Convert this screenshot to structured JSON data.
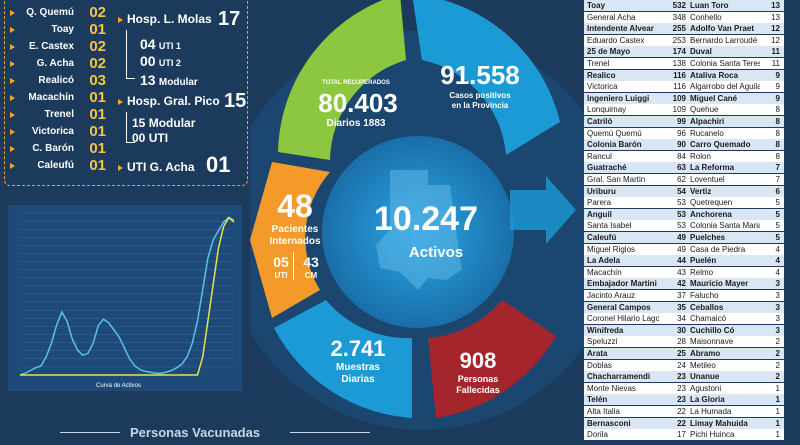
{
  "locations": [
    {
      "name": "Q. Quemú",
      "value": "02"
    },
    {
      "name": "Toay",
      "value": "01"
    },
    {
      "name": "E. Castex",
      "value": "02"
    },
    {
      "name": "G. Acha",
      "value": "02"
    },
    {
      "name": "Realicó",
      "value": "03"
    },
    {
      "name": "Macachín",
      "value": "01"
    },
    {
      "name": "Trenel",
      "value": "01"
    },
    {
      "name": "Victorica",
      "value": "01"
    },
    {
      "name": "C. Barón",
      "value": "01"
    },
    {
      "name": "Caleufú",
      "value": "01"
    }
  ],
  "hospitals": {
    "molas": {
      "label": "Hosp. L. Molas",
      "total": "17",
      "uti1": "04",
      "uti1_label": "UTI 1",
      "uti2": "00",
      "uti2_label": "UTI 2",
      "modular": "13",
      "modular_label": "Modular"
    },
    "pico": {
      "label": "Hosp. Gral. Pico",
      "total": "15",
      "modular": "15",
      "modular_label": "Modular",
      "uti": "00",
      "uti_label": "UTI"
    },
    "acha": {
      "label": "UTI G. Acha",
      "total": "01"
    }
  },
  "stats": {
    "recuperados": {
      "label": "TOTAL RECUPERADOS",
      "value": "80.403",
      "daily": "Diarios 1883"
    },
    "positivos": {
      "value": "91.558",
      "label1": "Casos positivos",
      "label2": "en la Provincia"
    },
    "internados": {
      "value": "48",
      "label1": "Pacientes",
      "label2": "Internados",
      "uti": "05",
      "uti_label": "UTI",
      "cm": "43",
      "cm_label": "CM"
    },
    "activos": {
      "value": "10.247",
      "label": "Activos"
    },
    "muestras": {
      "value": "2.741",
      "label1": "Muestras",
      "label2": "Diarias"
    },
    "fallecidas": {
      "value": "908",
      "label1": "Personas",
      "label2": "Fallecidas"
    }
  },
  "colors": {
    "green": "#8dc63f",
    "blue": "#1c9ad6",
    "orange": "#f39a2b",
    "red": "#a4262c",
    "center": "#1f8fd0",
    "panel_border": "#e8a23a"
  },
  "chart_data": {
    "type": "line",
    "xlabel": "Curva de Activos",
    "series": [
      {
        "name": "",
        "values": [
          0,
          2,
          5,
          8,
          10,
          20,
          35,
          55,
          70,
          60,
          40,
          28,
          22,
          24,
          35,
          55,
          62,
          58,
          50,
          42,
          30,
          18,
          10,
          6,
          4,
          3,
          2,
          2,
          3,
          5,
          8,
          12,
          20,
          35,
          60,
          95,
          130,
          150,
          160,
          170,
          175,
          172
        ]
      },
      {
        "name": "",
        "values": [
          0,
          0,
          0,
          0,
          0,
          0,
          0,
          0,
          0,
          0,
          0,
          0,
          0,
          0,
          0,
          0,
          0,
          0,
          0,
          0,
          0,
          0,
          0,
          0,
          0,
          0,
          0,
          0,
          0,
          0,
          0,
          0,
          0,
          0,
          0,
          20,
          60,
          100,
          140,
          165,
          175,
          170
        ]
      }
    ]
  },
  "table_rows": [
    [
      "Toay",
      "532",
      "Luan Toro",
      "13"
    ],
    [
      "General Acha",
      "348",
      "Conhello",
      "13"
    ],
    [
      "Intendente Alvear",
      "255",
      "Adolfo Van Praet",
      "12"
    ],
    [
      "Eduardo Castex",
      "253",
      "Bernardo Larroudé",
      "12"
    ],
    [
      "25 de Mayo",
      "174",
      "Duval",
      "11"
    ],
    [
      "Trenel",
      "138",
      "Colonia Santa Teresa",
      "11"
    ],
    [
      "Realico",
      "116",
      "Ataliva Roca",
      "9"
    ],
    [
      "Victorica",
      "116",
      "Algarrobo del Aguila",
      "9"
    ],
    [
      "Ingeniero Luiggi",
      "109",
      "Miguel Cané",
      "9"
    ],
    [
      "Lonquimay",
      "109",
      "Quehue",
      "8"
    ],
    [
      "Catriló",
      "99",
      "Alpachiri",
      "8"
    ],
    [
      "Quemú Quemú",
      "96",
      "Rucanelo",
      "8"
    ],
    [
      "Colonia Barón",
      "90",
      "Carro Quemado",
      "8"
    ],
    [
      "Rancul",
      "84",
      "Rolon",
      "8"
    ],
    [
      "Guatraché",
      "63",
      "La Reforma",
      "7"
    ],
    [
      "Gral. San Martin",
      "62",
      "Loventuel",
      "7"
    ],
    [
      "Uriburu",
      "54",
      "Vertiz",
      "6"
    ],
    [
      "Parera",
      "53",
      "Quetrequen",
      "5"
    ],
    [
      "Anguil",
      "53",
      "Anchorena",
      "5"
    ],
    [
      "Santa Isabel",
      "53",
      "Colonia Santa Maria",
      "5"
    ],
    [
      "Caleufú",
      "49",
      "Puelches",
      "5"
    ],
    [
      "Miguel Riglos",
      "49",
      "Casa de Piedra",
      "4"
    ],
    [
      "La Adela",
      "44",
      "Puelén",
      "4"
    ],
    [
      "Macachín",
      "43",
      "Relmo",
      "4"
    ],
    [
      "Embajador Martini",
      "42",
      "Mauricio Mayer",
      "3"
    ],
    [
      "Jacinto Arauz",
      "37",
      "Falucho",
      "3"
    ],
    [
      "General Campos",
      "35",
      "Ceballos",
      "3"
    ],
    [
      "Coronel Hilario Lagos",
      "34",
      "Chamaicó",
      "3"
    ],
    [
      "Winifreda",
      "30",
      "Cuchillo Có",
      "3"
    ],
    [
      "Speluzzi",
      "28",
      "Maisonnave",
      "2"
    ],
    [
      "Arata",
      "25",
      "Abramo",
      "2"
    ],
    [
      "Doblas",
      "24",
      "Metileo",
      "2"
    ],
    [
      "Chacharramendi",
      "23",
      "Unanue",
      "2"
    ],
    [
      "Monte Nievas",
      "23",
      "Agustoni",
      "1"
    ],
    [
      "Telén",
      "23",
      "La Gloria",
      "1"
    ],
    [
      "Alta Italia",
      "22",
      "La Humada",
      "1"
    ],
    [
      "Bernasconi",
      "22",
      "Limay Mahuida",
      "1"
    ],
    [
      "Dorila",
      "17",
      "Pichi Huinca",
      "1"
    ]
  ],
  "vacunadas_title": "Personas Vacunadas"
}
